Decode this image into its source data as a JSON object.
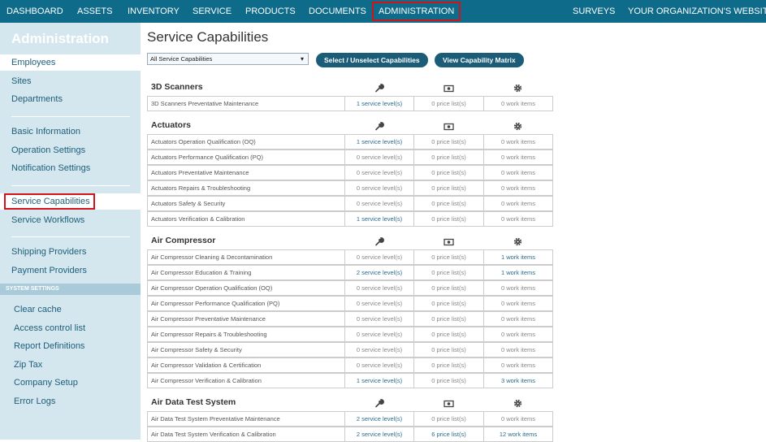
{
  "nav": {
    "left": [
      "DASHBOARD",
      "ASSETS",
      "INVENTORY",
      "SERVICE",
      "PRODUCTS",
      "DOCUMENTS",
      "ADMINISTRATION"
    ],
    "right": [
      "SURVEYS",
      "YOUR ORGANIZATION'S WEBSITE"
    ]
  },
  "sidebar": {
    "title": "Administration",
    "groups": [
      [
        "Employees",
        "Sites",
        "Departments"
      ],
      [
        "Basic Information",
        "Operation Settings",
        "Notification Settings"
      ],
      [
        "Service Capabilities",
        "Service Workflows"
      ],
      [
        "Shipping Providers",
        "Payment Providers"
      ]
    ],
    "section": "SYSTEM SETTINGS",
    "settings": [
      "Clear cache",
      "Access control list",
      "Report Definitions",
      "Zip Tax",
      "Company Setup",
      "Error Logs"
    ]
  },
  "main": {
    "title": "Service Capabilities",
    "filter": "All Service Capabilities",
    "buttons": [
      "Select / Unselect Capabilities",
      "View Capability Matrix"
    ],
    "groups": [
      {
        "name": "3D Scanners",
        "rows": [
          [
            "3D Scanners Preventative Maintenance",
            "1 service level(s)",
            "0 price list(s)",
            "0 work items"
          ]
        ]
      },
      {
        "name": "Actuators",
        "rows": [
          [
            "Actuators Operation Qualification (OQ)",
            "1 service level(s)",
            "0 price list(s)",
            "0 work items"
          ],
          [
            "Actuators Performance Qualification (PQ)",
            "0 service level(s)",
            "0 price list(s)",
            "0 work items"
          ],
          [
            "Actuators Preventative Maintenance",
            "0 service level(s)",
            "0 price list(s)",
            "0 work items"
          ],
          [
            "Actuators Repairs & Troubleshooting",
            "0 service level(s)",
            "0 price list(s)",
            "0 work items"
          ],
          [
            "Actuators Safety & Security",
            "0 service level(s)",
            "0 price list(s)",
            "0 work items"
          ],
          [
            "Actuators Verification & Calibration",
            "1 service level(s)",
            "0 price list(s)",
            "0 work items"
          ]
        ]
      },
      {
        "name": "Air Compressor",
        "rows": [
          [
            "Air Compressor Cleaning & Decontamination",
            "0 service level(s)",
            "0 price list(s)",
            "1 work items"
          ],
          [
            "Air Compressor Education & Training",
            "2 service level(s)",
            "0 price list(s)",
            "1 work items"
          ],
          [
            "Air Compressor Operation Qualification (OQ)",
            "0 service level(s)",
            "0 price list(s)",
            "0 work items"
          ],
          [
            "Air Compressor Performance Qualification (PQ)",
            "0 service level(s)",
            "0 price list(s)",
            "0 work items"
          ],
          [
            "Air Compressor Preventative Maintenance",
            "0 service level(s)",
            "0 price list(s)",
            "0 work items"
          ],
          [
            "Air Compressor Repairs & Troubleshooting",
            "0 service level(s)",
            "0 price list(s)",
            "0 work items"
          ],
          [
            "Air Compressor Safety & Security",
            "0 service level(s)",
            "0 price list(s)",
            "0 work items"
          ],
          [
            "Air Compressor Validation & Certification",
            "0 service level(s)",
            "0 price list(s)",
            "0 work items"
          ],
          [
            "Air Compressor Verification & Calibration",
            "1 service level(s)",
            "0 price list(s)",
            "3 work items"
          ]
        ]
      },
      {
        "name": "Air Data Test System",
        "rows": [
          [
            "Air Data Test System Preventative Maintenance",
            "2 service level(s)",
            "0 price list(s)",
            "0 work items"
          ],
          [
            "Air Data Test System Verification & Calibration",
            "2 service level(s)",
            "6 price list(s)",
            "12 work items"
          ]
        ]
      }
    ]
  }
}
